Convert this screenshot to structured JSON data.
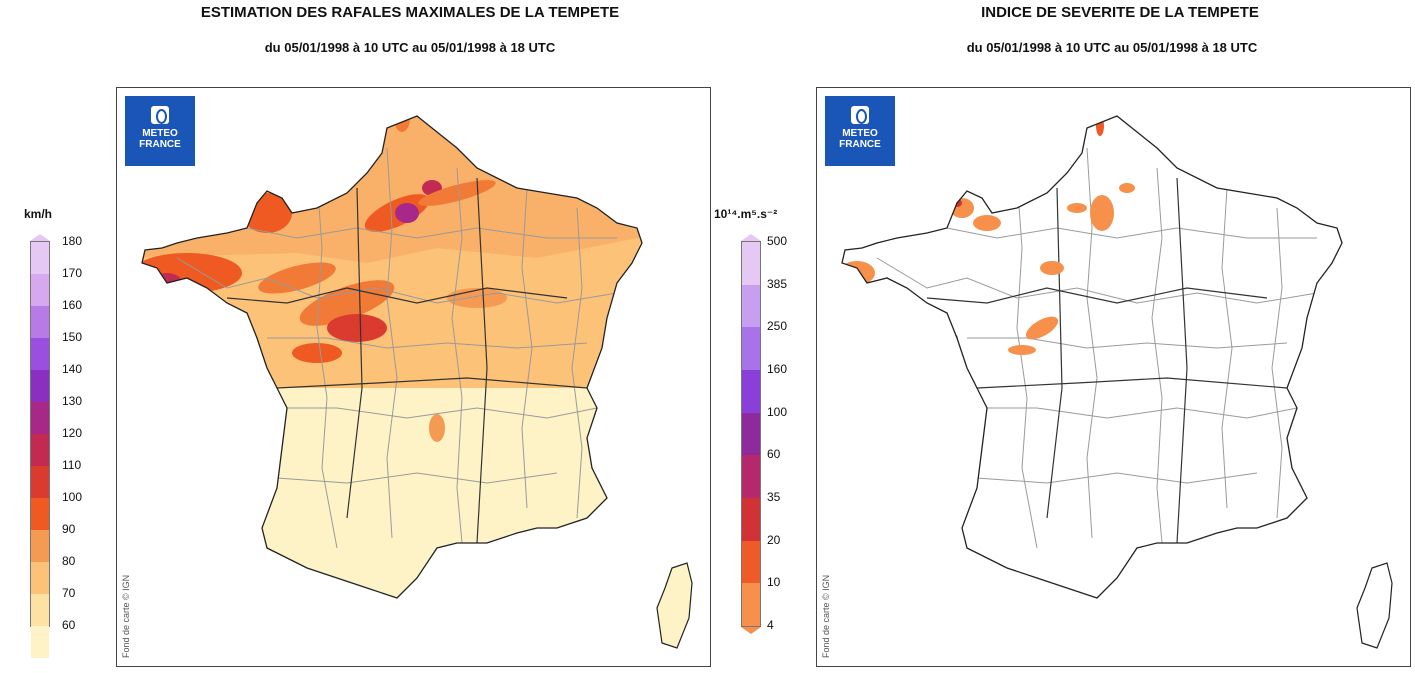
{
  "left_panel": {
    "title": "ESTIMATION DES RAFALES MAXIMALES DE LA TEMPETE",
    "subtitle": "du 05/01/1998 à 10 UTC au 05/01/1998 à 18 UTC",
    "logo": {
      "line1": "METEO",
      "line2": "FRANCE"
    },
    "credit": "Fond de carte © IGN",
    "legend": {
      "unit": "km/h",
      "labels": [
        "180",
        "170",
        "160",
        "150",
        "140",
        "130",
        "120",
        "110",
        "100",
        "90",
        "80",
        "70",
        "60"
      ],
      "colors": [
        "#e6c8f5",
        "#d6a8f0",
        "#b77ae6",
        "#9a4fe0",
        "#8a2fc0",
        "#a8288a",
        "#c22a52",
        "#db3a2e",
        "#ee5a22",
        "#f59a52",
        "#fbc278",
        "#fde2a4",
        "#fdf3c6"
      ]
    }
  },
  "right_panel": {
    "title": "INDICE DE SEVERITE DE LA TEMPETE",
    "subtitle": "du 05/01/1998 à 10 UTC au 05/01/1998 à 18 UTC",
    "logo": {
      "line1": "METEO",
      "line2": "FRANCE"
    },
    "credit": "Fond de carte © IGN",
    "legend": {
      "unit": "10¹⁴.m⁵.s⁻²",
      "labels": [
        "500",
        "385",
        "250",
        "160",
        "100",
        "60",
        "35",
        "20",
        "10",
        "4"
      ],
      "colors": [
        "#e6c8f5",
        "#c89ef0",
        "#a872e8",
        "#8a3fd8",
        "#8e2a9c",
        "#b4286c",
        "#d03236",
        "#ee5a28",
        "#f7904a"
      ]
    }
  }
}
